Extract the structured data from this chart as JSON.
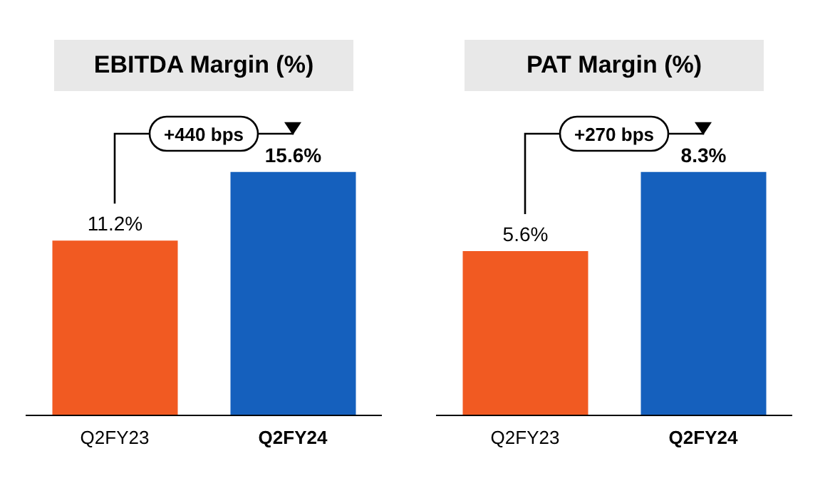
{
  "chart_data": [
    {
      "type": "bar",
      "title": "EBITDA Margin (%)",
      "categories": [
        "Q2FY23",
        "Q2FY24"
      ],
      "values": [
        11.2,
        15.6
      ],
      "colors": [
        "#f15a22",
        "#1560bd"
      ],
      "value_labels": [
        "11.2%",
        "15.6%"
      ],
      "annotations": [
        "+440 bps"
      ]
    },
    {
      "type": "bar",
      "title": "PAT Margin (%)",
      "categories": [
        "Q2FY23",
        "Q2FY24"
      ],
      "values": [
        5.6,
        8.3
      ],
      "colors": [
        "#f15a22",
        "#1560bd"
      ],
      "value_labels": [
        "5.6%",
        "8.3%"
      ],
      "annotations": [
        "+270 bps"
      ]
    }
  ]
}
